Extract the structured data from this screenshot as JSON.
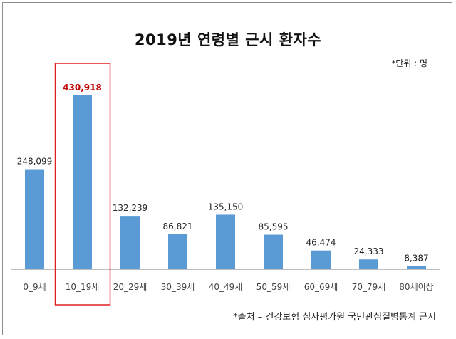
{
  "chart_data": {
    "type": "bar",
    "title": "2019년 연령별 근시 환자수",
    "unit_note": "*단위 : 명",
    "source_note": "*출처 – 건강보험 심사평가원 국민관심질병통계 근시",
    "categories": [
      "0_9세",
      "10_19세",
      "20_29세",
      "30_39세",
      "40_49세",
      "50_59세",
      "60_69세",
      "70_79세",
      "80세이상"
    ],
    "values": [
      248099,
      430918,
      132239,
      86821,
      135150,
      85595,
      46474,
      24333,
      8387
    ],
    "value_labels": [
      "248,099",
      "430,918",
      "132,239",
      "86,821",
      "135,150",
      "85,595",
      "46,474",
      "24,333",
      "8,387"
    ],
    "highlight_index": 1,
    "colors": {
      "bar": "#5b9bd5",
      "highlight_text": "#c00000",
      "highlight_box": "#e02020",
      "axis": "#bfbfbf"
    },
    "grid": false,
    "legend": "none"
  }
}
